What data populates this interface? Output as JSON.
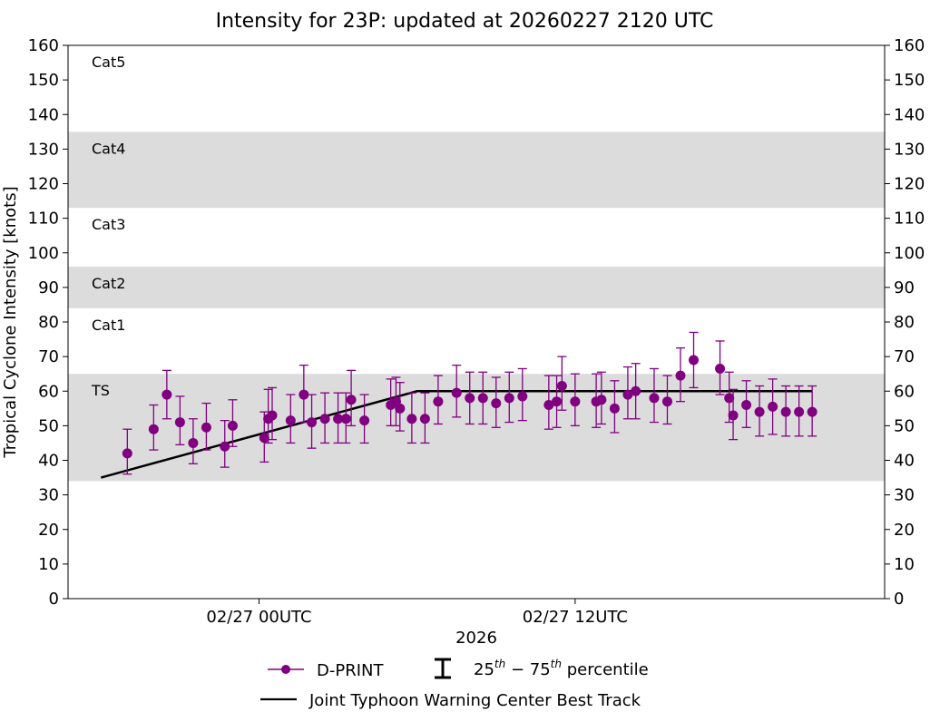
{
  "chart_data": {
    "type": "scatter",
    "title": "Intensity for 23P: updated at 20260227 2120 UTC",
    "ylabel": "Tropical Cyclone Intensity [knots]",
    "xlabel": "2026",
    "ylim": [
      0,
      160
    ],
    "yticks": [
      0,
      10,
      20,
      30,
      40,
      50,
      60,
      70,
      80,
      90,
      100,
      110,
      120,
      130,
      140,
      150,
      160
    ],
    "xlim_hours": [
      -7.25,
      23.75
    ],
    "xticks": [
      {
        "hour": 0,
        "label": "02/27 00UTC"
      },
      {
        "hour": 12,
        "label": "02/27 12UTC"
      }
    ],
    "categories": [
      {
        "label": "TS",
        "min": 34,
        "max": 65,
        "shaded": true
      },
      {
        "label": "Cat1",
        "min": 65,
        "max": 84,
        "shaded": false
      },
      {
        "label": "Cat2",
        "min": 84,
        "max": 96,
        "shaded": true
      },
      {
        "label": "Cat3",
        "min": 96,
        "max": 113,
        "shaded": false
      },
      {
        "label": "Cat4",
        "min": 113,
        "max": 135,
        "shaded": true
      },
      {
        "label": "Cat5",
        "min": 135,
        "max": 160,
        "shaded": false
      }
    ],
    "colors": {
      "dprint": "#800080",
      "best_track": "#000000",
      "band": "#dcdcdc"
    },
    "best_track": {
      "name": "Joint Typhoon Warning Center Best Track",
      "x": [
        -6,
        6,
        21
      ],
      "y": [
        35,
        60,
        60
      ]
    },
    "dprint": {
      "name": "D-PRINT",
      "x": [
        -5,
        -4,
        -3.5,
        -3,
        -2.5,
        -2,
        -1.3,
        -1,
        0.2,
        0.35,
        0.5,
        1.2,
        1.7,
        2,
        2.5,
        3,
        3.3,
        3.5,
        4,
        5,
        5.2,
        5.35,
        5.8,
        6.3,
        6.8,
        7.5,
        8,
        8.5,
        9,
        9.5,
        10,
        11,
        11.3,
        11.5,
        12,
        12.8,
        13,
        13.5,
        14,
        14.3,
        15,
        15.5,
        16,
        16.5,
        17.5,
        17.85,
        18,
        18.5,
        19,
        19.5,
        20,
        20.5,
        21
      ],
      "y": [
        42,
        49,
        59,
        51,
        45,
        49.5,
        44,
        50,
        46.5,
        52,
        53,
        51.5,
        59,
        51,
        52,
        52,
        52,
        57.5,
        51.5,
        56,
        57,
        55,
        52,
        52,
        57,
        59.5,
        58,
        58,
        56.5,
        58,
        58.5,
        56,
        57,
        61.5,
        57,
        57,
        57.5,
        55,
        59,
        60,
        58,
        57,
        64.5,
        69,
        66.5,
        58,
        53,
        56,
        54,
        55.5,
        54,
        54,
        54
      ],
      "p25": [
        36,
        43,
        52,
        44.5,
        39,
        43,
        38,
        44,
        39.5,
        45,
        46,
        45,
        51,
        43.5,
        45,
        45,
        45,
        50,
        45,
        50,
        50,
        48.5,
        45,
        45,
        50.5,
        52.5,
        50.5,
        50.5,
        49.5,
        51,
        51.5,
        49,
        49.5,
        54.5,
        50,
        49.5,
        50.5,
        48,
        52,
        52,
        51,
        50.5,
        57,
        61,
        59,
        51,
        46,
        49.5,
        47,
        47.5,
        47,
        47,
        47
      ],
      "p75": [
        49,
        56,
        66,
        58.5,
        52,
        56.5,
        51.5,
        57.5,
        54,
        60.5,
        61,
        59,
        67.5,
        59,
        59.5,
        59.5,
        59.5,
        66,
        59,
        63.5,
        64,
        62.5,
        59.5,
        59.5,
        64.5,
        67.5,
        65.5,
        65.5,
        64,
        65.5,
        66.5,
        64.5,
        64.5,
        70,
        65,
        65,
        65.5,
        63,
        67,
        68,
        66.5,
        64.5,
        72.5,
        77,
        74.5,
        65.5,
        60.5,
        63,
        61.5,
        63.5,
        61.5,
        61.5,
        61.5
      ]
    },
    "legend": {
      "position": "bottom-center",
      "dprint_label": "D-PRINT",
      "percentile_label": "25th − 75th percentile",
      "best_track_label": "Joint Typhoon Warning Center Best Track"
    }
  }
}
